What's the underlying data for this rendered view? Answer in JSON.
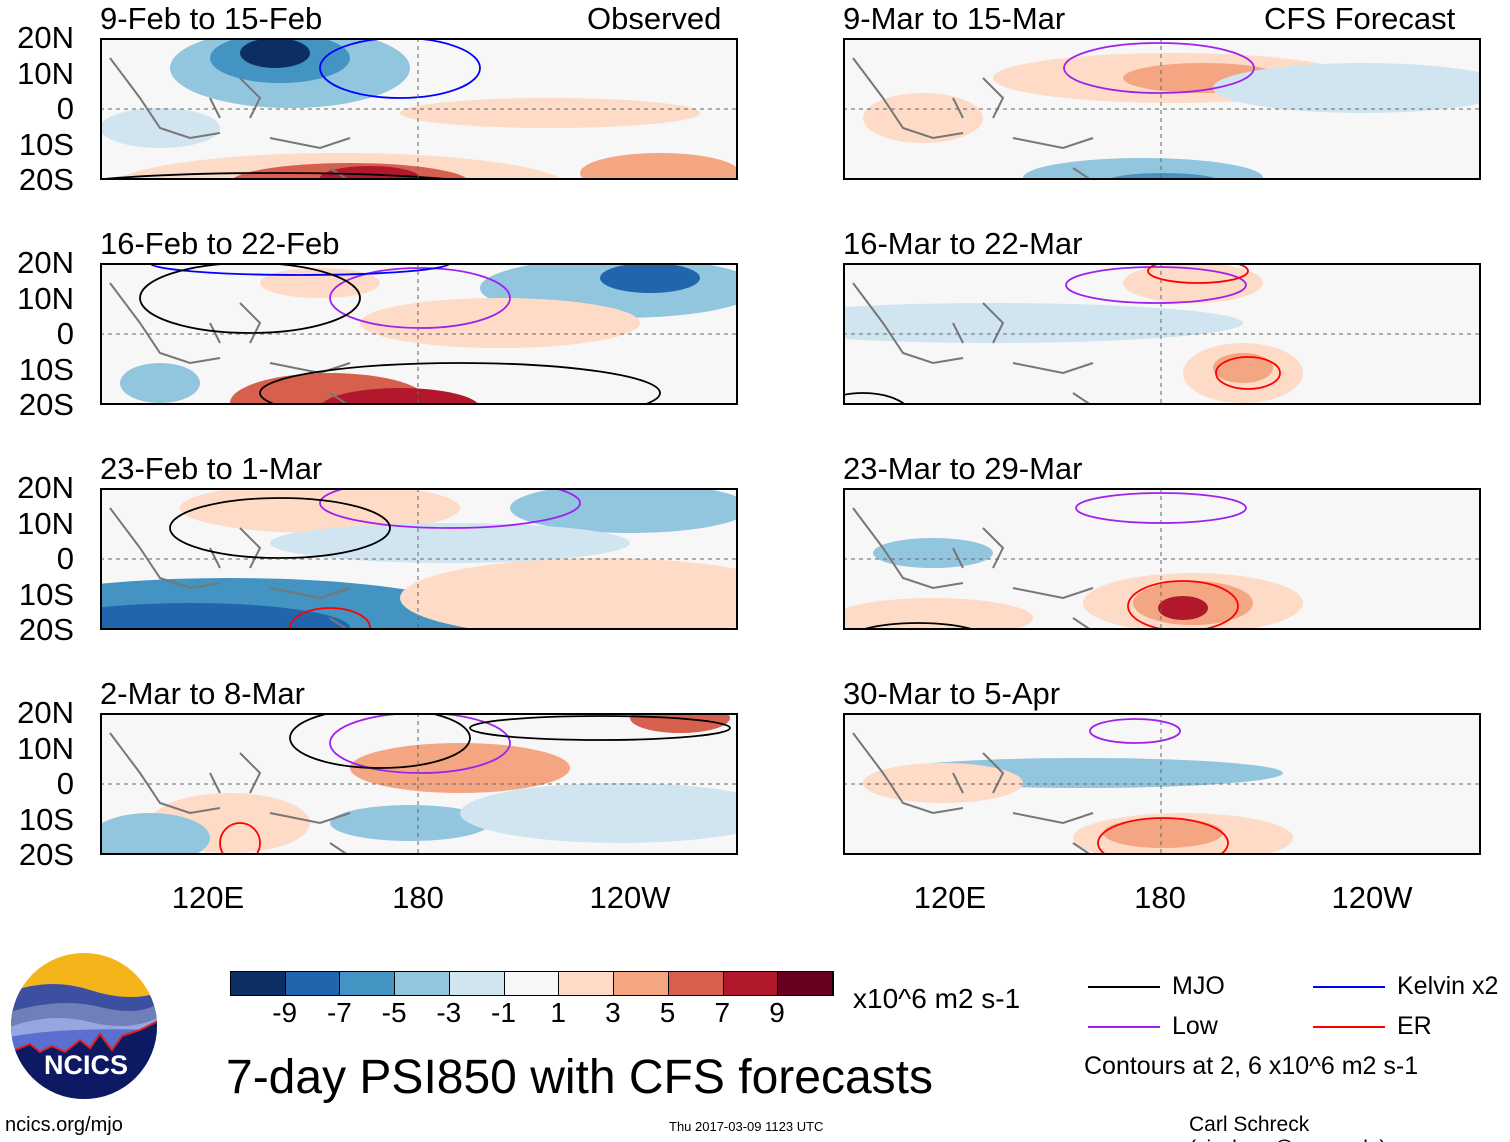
{
  "titles": {
    "observed": "Observed",
    "forecast": "CFS Forecast",
    "main": "7-day PSI850 with CFS forecasts"
  },
  "panels_left": [
    {
      "label": "9-Feb to 15-Feb"
    },
    {
      "label": "16-Feb to 22-Feb"
    },
    {
      "label": "23-Feb to 1-Mar"
    },
    {
      "label": "2-Mar to 8-Mar"
    }
  ],
  "panels_right": [
    {
      "label": "9-Mar to 15-Mar"
    },
    {
      "label": "16-Mar to 22-Mar"
    },
    {
      "label": "23-Mar to 29-Mar"
    },
    {
      "label": "30-Mar to 5-Apr"
    }
  ],
  "lat_labels": [
    "20N",
    "10N",
    "0",
    "10S",
    "20S"
  ],
  "lon_labels": [
    "120E",
    "180",
    "120W"
  ],
  "colorbar": {
    "colors": [
      "#0b2f63",
      "#2166ac",
      "#4393c3",
      "#92c5de",
      "#d1e5f0",
      "#f7f7f7",
      "#fddbc7",
      "#f4a582",
      "#d6604d",
      "#b2182b",
      "#67001f"
    ],
    "labels": [
      "-9",
      "-7",
      "-5",
      "-3",
      "-1",
      "1",
      "3",
      "5",
      "7",
      "9"
    ],
    "units": "x10^6 m2 s-1"
  },
  "legend": {
    "items": [
      {
        "label": "MJO",
        "color": "#000000"
      },
      {
        "label": "Kelvin x2",
        "color": "#0000ff"
      },
      {
        "label": "Low",
        "color": "#a020f0"
      },
      {
        "label": "ER",
        "color": "#ff0000"
      }
    ],
    "note": "Contours at 2, 6 x10^6 m2 s-1"
  },
  "logo": {
    "text": "NCICS"
  },
  "footer": {
    "url": "ncics.org/mjo",
    "timestamp": "Thu 2017-03-09 1123 UTC",
    "credit": "Carl Schreck (cjschrec@ncsu.edu)"
  }
}
